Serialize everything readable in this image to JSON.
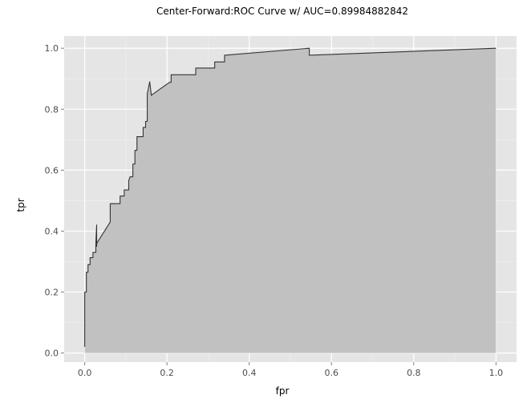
{
  "chart_data": {
    "type": "area",
    "title": "Center-Forward:ROC Curve w/ AUC=0.89984882842",
    "xlabel": "fpr",
    "ylabel": "tpr",
    "xlim": [
      -0.05,
      1.05
    ],
    "ylim": [
      -0.03,
      1.04
    ],
    "xticks": [
      0.0,
      0.2,
      0.4,
      0.6,
      0.8,
      1.0
    ],
    "xtick_labels": [
      "0.0",
      "0.2",
      "0.4",
      "0.6",
      "0.8",
      "1.0"
    ],
    "yticks": [
      0.0,
      0.2,
      0.4,
      0.6,
      0.8,
      1.0
    ],
    "ytick_labels": [
      "0.0",
      "0.2",
      "0.4",
      "0.6",
      "0.8",
      "1.0"
    ],
    "grid": true,
    "colors": {
      "panel": "#e5e5e5",
      "grid_major": "#ffffff",
      "grid_minor": "#f2f2f2",
      "fill": "#bfbfbf",
      "line": "#333333"
    },
    "series": [
      {
        "x": [
          0.0,
          0.0,
          0.004,
          0.004,
          0.008,
          0.008,
          0.013,
          0.013,
          0.02,
          0.02,
          0.027,
          0.027,
          0.029,
          0.029,
          0.027,
          0.062,
          0.062,
          0.086,
          0.086,
          0.096,
          0.096,
          0.107,
          0.107,
          0.11,
          0.117,
          0.117,
          0.122,
          0.122,
          0.127,
          0.127,
          0.142,
          0.142,
          0.148,
          0.148,
          0.152,
          0.152,
          0.158,
          0.162,
          0.164,
          0.206,
          0.21,
          0.21,
          0.27,
          0.27,
          0.316,
          0.316,
          0.34,
          0.34,
          0.546,
          0.546,
          1.0
        ],
        "y": [
          0.02,
          0.2,
          0.2,
          0.265,
          0.265,
          0.29,
          0.29,
          0.313,
          0.313,
          0.33,
          0.33,
          0.36,
          0.42,
          0.35,
          0.355,
          0.43,
          0.49,
          0.49,
          0.515,
          0.515,
          0.535,
          0.535,
          0.565,
          0.578,
          0.578,
          0.62,
          0.62,
          0.665,
          0.665,
          0.71,
          0.71,
          0.74,
          0.74,
          0.76,
          0.76,
          0.85,
          0.89,
          0.845,
          0.848,
          0.888,
          0.888,
          0.913,
          0.913,
          0.935,
          0.935,
          0.955,
          0.955,
          0.977,
          1.0,
          0.977,
          1.0
        ]
      }
    ]
  }
}
